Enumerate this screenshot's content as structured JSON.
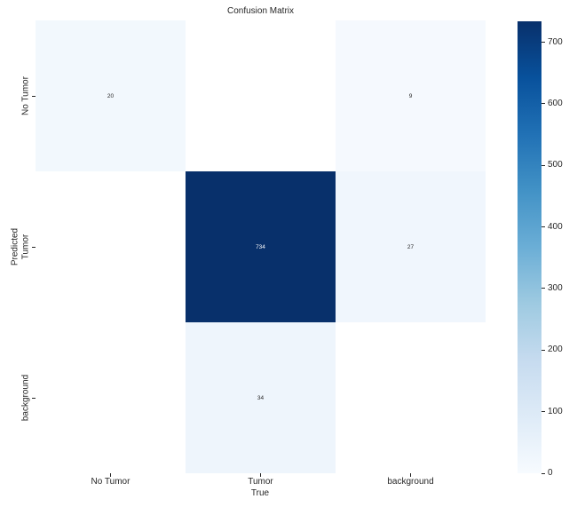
{
  "figure": {
    "title": "Confusion Matrix"
  },
  "chart_data": {
    "type": "heatmap",
    "title": "Confusion Matrix",
    "xlabel": "True",
    "ylabel": "Predicted",
    "x_categories": [
      "No Tumor",
      "Tumor",
      "background"
    ],
    "y_categories": [
      "No Tumor",
      "Tumor",
      "background"
    ],
    "values": [
      [
        20,
        null,
        9
      ],
      [
        null,
        734,
        27
      ],
      [
        null,
        34,
        null
      ]
    ],
    "vmin": 0,
    "vmax": 734,
    "colormap": "Blues",
    "colormap_stops": [
      "#f7fbff",
      "#deebf7",
      "#c6dbef",
      "#9ecae1",
      "#6baed6",
      "#4292c6",
      "#2171b5",
      "#08519c",
      "#08306b"
    ],
    "null_cell_color": "#ffffff",
    "colorbar_ticks": [
      0,
      100,
      200,
      300,
      400,
      500,
      600,
      700
    ],
    "text_color": "#262626",
    "annotation_light_color": "#ffffff",
    "grid": false,
    "legend_position": "right-colorbar"
  }
}
